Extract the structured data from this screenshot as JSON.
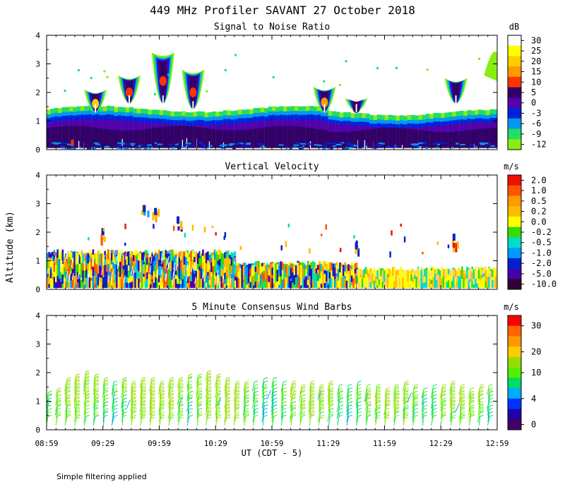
{
  "title": "449 MHz Profiler SAVANT 27 October 2018",
  "ylabel": "Altitude (km)",
  "xlabel": "UT  (CDT - 5)",
  "x_ticks": [
    "08:59",
    "09:29",
    "09:59",
    "10:29",
    "10:59",
    "11:29",
    "11:59",
    "12:29",
    "12:59"
  ],
  "footer": "Simple filtering applied",
  "chart_data": [
    {
      "type": "heatmap",
      "title": "Signal to Noise Ratio",
      "units": "dB",
      "xlim_minutes": [
        0,
        240
      ],
      "ylim": [
        0,
        4
      ],
      "y_ticks": [
        "0",
        "1",
        "2",
        "3",
        "4"
      ],
      "colorbar_labels": [
        "30",
        "25",
        "20",
        "15",
        "10",
        "5",
        "0",
        "-3",
        "-6",
        "-9",
        "-12"
      ],
      "colorbar_colors": [
        "#ffffff",
        "#ffff00",
        "#ffcc00",
        "#ff9900",
        "#ff3300",
        "#330066",
        "#5500aa",
        "#0022dd",
        "#0099ee",
        "#22dd66",
        "#88ee11"
      ],
      "layers": [
        {
          "name": "low-snr-fringe",
          "top_km": 1.4,
          "value_db": -9
        },
        {
          "name": "mid-snr-band",
          "top_km": 1.2,
          "value_db": -3
        },
        {
          "name": "strong-layer",
          "top_km": 0.9,
          "value_db": 3
        }
      ],
      "features": [
        {
          "t_min": 26,
          "bottom_km": 1.3,
          "top_km": 2.1,
          "peak_db": 20
        },
        {
          "t_min": 44,
          "bottom_km": 1.6,
          "top_km": 2.6,
          "peak_db": 10
        },
        {
          "t_min": 62,
          "bottom_km": 1.6,
          "top_km": 3.4,
          "peak_db": 10
        },
        {
          "t_min": 78,
          "bottom_km": 1.4,
          "top_km": 2.8,
          "peak_db": 10
        },
        {
          "t_min": 148,
          "bottom_km": 1.3,
          "top_km": 2.2,
          "peak_db": 15
        },
        {
          "t_min": 165,
          "bottom_km": 1.3,
          "top_km": 1.8,
          "peak_db": 5
        },
        {
          "t_min": 218,
          "bottom_km": 1.6,
          "top_km": 2.5,
          "peak_db": 5
        }
      ]
    },
    {
      "type": "heatmap",
      "title": "Vertical Velocity",
      "units": "m/s",
      "xlim_minutes": [
        0,
        240
      ],
      "ylim": [
        0,
        4
      ],
      "y_ticks": [
        "0",
        "1",
        "2",
        "3",
        "4"
      ],
      "colorbar_labels": [
        "2.0",
        "1.0",
        "0.5",
        "0.2",
        "0.0",
        "-0.2",
        "-0.5",
        "-1.0",
        "-2.0",
        "-5.0",
        "-10.0"
      ],
      "colorbar_colors": [
        "#ee1100",
        "#ff5500",
        "#ff9900",
        "#ffbb00",
        "#ffff00",
        "#33dd00",
        "#00ddcc",
        "#0099ff",
        "#0022cc",
        "#4400aa",
        "#330033"
      ],
      "regions": [
        {
          "t_start_min": 0,
          "t_end_min": 100,
          "top_km": 1.4
        },
        {
          "t_start_min": 100,
          "t_end_min": 165,
          "top_km": 1.0
        },
        {
          "t_start_min": 165,
          "t_end_min": 240,
          "top_km": 0.8
        }
      ],
      "features": [
        {
          "t_min": 52,
          "alt_km": 2.8,
          "value": -1.0
        },
        {
          "t_min": 58,
          "alt_km": 2.7,
          "value": 0.5
        },
        {
          "t_min": 70,
          "alt_km": 2.4,
          "value": -5.0
        },
        {
          "t_min": 30,
          "alt_km": 2.0,
          "value": 1.0
        },
        {
          "t_min": 217,
          "alt_km": 1.8,
          "value": 2.0
        },
        {
          "t_min": 165,
          "alt_km": 1.5,
          "value": -2.0
        }
      ]
    },
    {
      "type": "wind_barbs",
      "title": "5 Minute Consensus Wind Barbs",
      "units": "m/s",
      "xlim_minutes": [
        0,
        240
      ],
      "ylim": [
        0,
        4
      ],
      "y_ticks": [
        "0",
        "1",
        "2",
        "3",
        "4"
      ],
      "colorbar_labels": [
        "30",
        "20",
        "10",
        "4",
        "0"
      ],
      "colorbar_colors": [
        "#ff0000",
        "#ff6600",
        "#ff9900",
        "#ffcc00",
        "#99dd00",
        "#55ee00",
        "#00dd66",
        "#00aaff",
        "#0033ff",
        "#2200aa",
        "#440066"
      ],
      "interval_min": 5,
      "speed_ms": [
        9,
        10,
        11,
        12,
        11,
        10,
        9,
        8,
        9,
        11,
        12,
        13,
        12,
        11,
        10,
        9,
        10,
        11,
        12,
        13,
        12,
        10,
        9,
        8,
        8,
        9,
        10,
        11,
        12,
        11,
        10,
        9,
        8,
        9,
        10,
        11,
        12,
        11,
        10,
        9,
        8,
        9,
        10,
        11,
        12,
        11,
        10,
        9
      ],
      "top_km": [
        1.1,
        1.2,
        1.5,
        1.7,
        1.8,
        1.6,
        1.5,
        1.4,
        1.5,
        1.4,
        1.5,
        1.5,
        1.4,
        1.5,
        1.5,
        1.6,
        1.7,
        1.8,
        1.6,
        1.5,
        1.4,
        1.4,
        1.4,
        1.5,
        1.5,
        1.4,
        1.4,
        1.3,
        1.4,
        1.3,
        1.4,
        1.3,
        1.3,
        1.4,
        1.3,
        1.3,
        1.2,
        1.3,
        1.4,
        1.3,
        1.2,
        1.3,
        1.3,
        1.4,
        1.3,
        1.2,
        1.3,
        1.3
      ]
    }
  ]
}
